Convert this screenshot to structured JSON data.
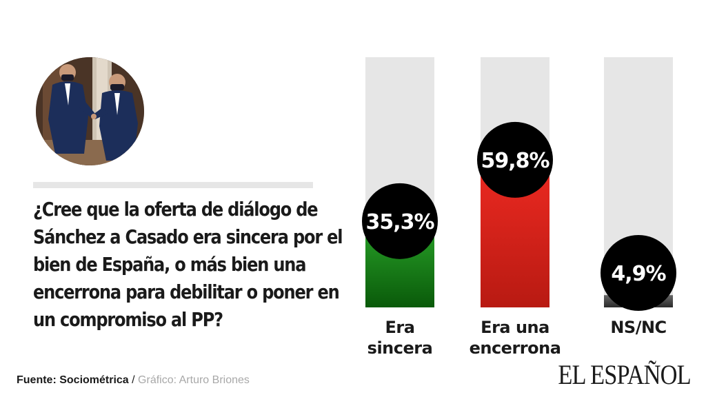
{
  "question": "¿Cree que la oferta de diálogo de Sánchez a Casado era sincera por el bien de España, o más bien una encerrona para debilitar o poner en un compromiso al PP?",
  "source": {
    "label": "Fuente: Sociométrica",
    "separator": " / ",
    "credit": "Gráfico: Arturo Briones"
  },
  "brand": "EL ESPAÑOL",
  "chart_data": {
    "type": "bar",
    "categories": [
      "Era sincera",
      "Era una encerrona",
      "NS/NC"
    ],
    "category_lines": [
      [
        "Era",
        "sincera"
      ],
      [
        "Era una",
        "encerrona"
      ],
      [
        "NS/NC"
      ]
    ],
    "values": [
      35.3,
      59.8,
      4.9
    ],
    "value_labels": [
      "35,3%",
      "59,8%",
      "4,9%"
    ],
    "ylim": [
      0,
      100
    ],
    "colors": {
      "track": "#e6e6e6",
      "bar_tops": [
        "#2aa52a",
        "#ee2a22",
        "#666666"
      ],
      "bar_bottoms": [
        "#0a5a0a",
        "#b81a12",
        "#2a2a2a"
      ],
      "bubble": "#000000",
      "bubble_text": "#ffffff"
    }
  }
}
